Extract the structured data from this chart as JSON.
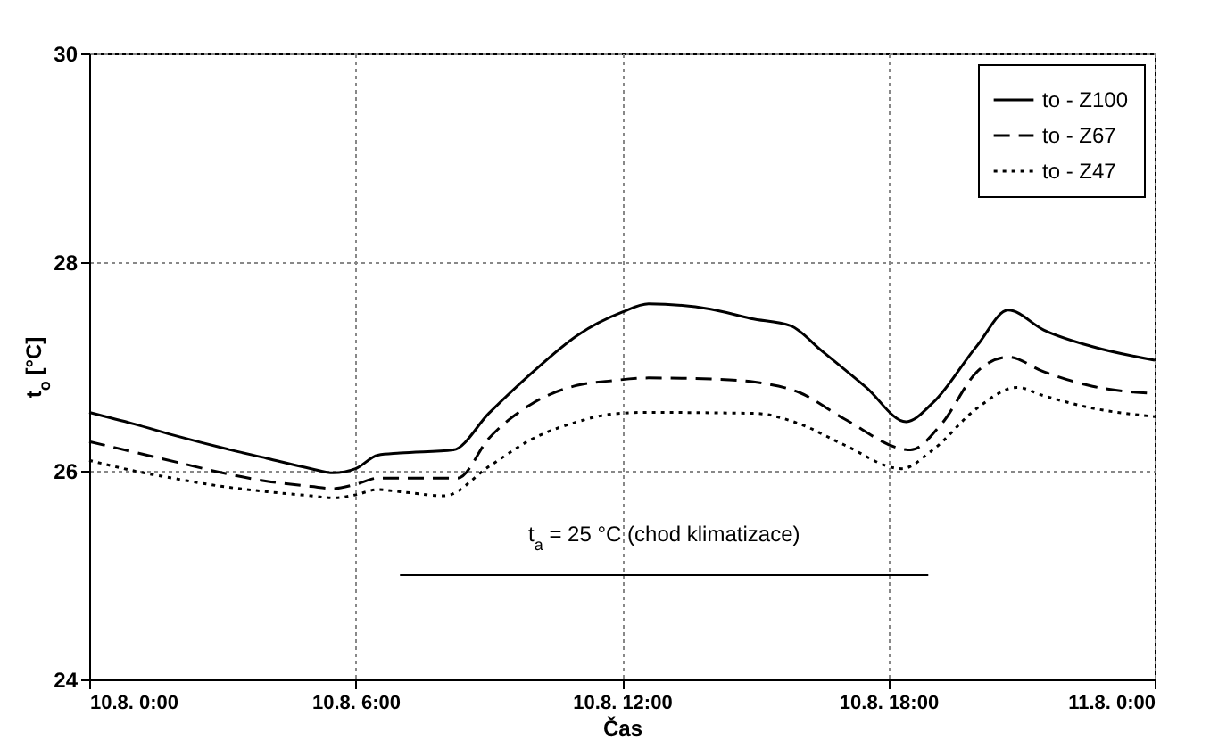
{
  "chart_data": {
    "type": "line",
    "xlabel": "Čas",
    "ylabel": "t$_{o}$ [°C]",
    "xlim": [
      "--08-10T00:00",
      "--08-11T00:00"
    ],
    "xticks": [
      {
        "value": "--08-10T00:00",
        "label": "10.8. 0:00"
      },
      {
        "value": "--08-10T06:00",
        "label": "10.8. 6:00"
      },
      {
        "value": "--08-10T12:00",
        "label": "10.8. 12:00"
      },
      {
        "value": "--08-10T18:00",
        "label": "10.8. 18:00"
      },
      {
        "value": "--08-11T00:00",
        "label": "11.8. 0:00"
      }
    ],
    "ylim": [
      24,
      30
    ],
    "yticks": [
      24,
      26,
      28,
      30
    ],
    "grid": true,
    "legend": "top right",
    "annotations": [
      "t$_{a}$ = 25 °C (chod klimatizace)"
    ],
    "series": [
      {
        "name": "to - Z100",
        "color": "#000000",
        "line_style": "solid",
        "x": [
          "--08-10T00:00",
          "--08-10T01:00",
          "--08-10T02:00",
          "--08-10T03:00",
          "--08-10T04:00",
          "--08-10T05:00",
          "--08-10T05:30",
          "--08-10T06:00",
          "--08-10T06:30",
          "--08-10T07:00",
          "--08-10T08:12",
          "--08-10T09:00",
          "--08-10T10:00",
          "--08-10T11:00",
          "--08-10T12:00",
          "--08-10T12:36",
          "--08-10T14:00",
          "--08-10T14:54",
          "--08-10T15:48",
          "--08-10T16:30",
          "--08-10T17:30",
          "--08-10T18:24",
          "--08-10T19:00",
          "--08-10T20:00",
          "--08-10T20:42",
          "--08-10T21:30",
          "--08-10T22:36",
          "--08-11T00:00"
        ],
        "values": [
          26.56,
          26.45,
          26.33,
          26.22,
          26.12,
          26.02,
          25.98,
          26.02,
          26.15,
          26.17,
          26.2,
          26.55,
          26.95,
          27.3,
          27.52,
          27.6,
          27.55,
          27.46,
          27.39,
          27.15,
          26.8,
          26.47,
          26.65,
          27.2,
          27.54,
          27.35,
          27.19,
          27.06
        ]
      },
      {
        "name": "to - Z67",
        "color": "#000000",
        "line_style": "dashed",
        "x": [
          "--08-10T00:00",
          "--08-10T01:00",
          "--08-10T02:00",
          "--08-10T03:00",
          "--08-10T04:00",
          "--08-10T05:00",
          "--08-10T05:30",
          "--08-10T06:00",
          "--08-10T06:30",
          "--08-10T07:00",
          "--08-10T08:18",
          "--08-10T09:00",
          "--08-10T10:00",
          "--08-10T11:00",
          "--08-10T11:42",
          "--08-10T12:36",
          "--08-10T14:00",
          "--08-10T15:00",
          "--08-10T16:00",
          "--08-10T17:00",
          "--08-10T18:30",
          "--08-10T19:12",
          "--08-10T20:00",
          "--08-10T20:42",
          "--08-10T21:30",
          "--08-10T22:36",
          "--08-11T00:00"
        ],
        "values": [
          26.28,
          26.18,
          26.08,
          25.98,
          25.9,
          25.85,
          25.83,
          25.87,
          25.93,
          25.93,
          25.93,
          26.31,
          26.65,
          26.82,
          26.86,
          26.89,
          26.88,
          26.85,
          26.75,
          26.5,
          26.2,
          26.45,
          26.95,
          27.09,
          26.95,
          26.81,
          26.74
        ]
      },
      {
        "name": "to - Z47",
        "color": "#000000",
        "line_style": "dotted",
        "x": [
          "--08-10T00:00",
          "--08-10T01:00",
          "--08-10T02:00",
          "--08-10T03:00",
          "--08-10T04:00",
          "--08-10T05:00",
          "--08-10T05:30",
          "--08-10T06:00",
          "--08-10T06:30",
          "--08-10T07:00",
          "--08-10T08:00",
          "--08-10T09:00",
          "--08-10T10:00",
          "--08-10T11:00",
          "--08-10T11:42",
          "--08-10T12:30",
          "--08-10T15:00",
          "--08-10T16:00",
          "--08-10T17:00",
          "--08-10T18:18",
          "--08-10T19:00",
          "--08-10T20:00",
          "--08-10T20:54",
          "--08-10T21:30",
          "--08-10T22:36",
          "--08-11T00:00"
        ],
        "values": [
          26.1,
          26.0,
          25.92,
          25.85,
          25.8,
          25.76,
          25.74,
          25.77,
          25.82,
          25.8,
          25.76,
          26.04,
          26.31,
          26.47,
          26.54,
          26.56,
          26.55,
          26.45,
          26.25,
          26.02,
          26.2,
          26.6,
          26.8,
          26.72,
          26.6,
          26.52
        ]
      },
      {
        "type": "line",
        "color": "#000000",
        "line_style": "solid",
        "x": [
          "--08-10T07:00",
          "--08-10T18:54"
        ],
        "values": [
          25,
          25
        ]
      }
    ]
  }
}
